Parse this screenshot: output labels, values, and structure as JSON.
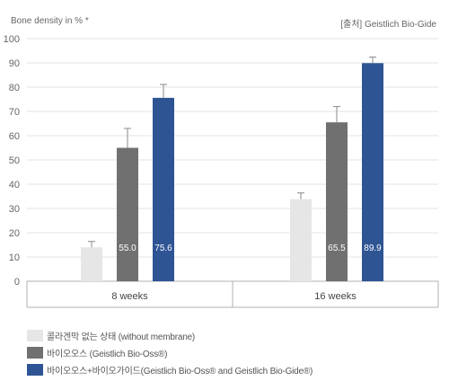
{
  "chart_data": {
    "type": "bar",
    "ylabel": "Bone density in % *",
    "source": "[출처] Geistlich Bio-Gide",
    "ylim": [
      0,
      100
    ],
    "yticks": [
      "0",
      "10",
      "20",
      "30",
      "40",
      "50",
      "60",
      "70",
      "80",
      "90",
      "100"
    ],
    "categories": [
      "8 weeks",
      "16 weeks"
    ],
    "grid": true,
    "series": [
      {
        "name": "콜라겐막 없는 상태 (without membrane)",
        "color": "#e6e6e6",
        "values": [
          14,
          33.8
        ],
        "labels": [
          "",
          ""
        ],
        "error": [
          2.4,
          2.6
        ]
      },
      {
        "name": "바이오오스 (Geistlich Bio-Oss®)",
        "color": "#707070",
        "values": [
          55.0,
          65.5
        ],
        "labels": [
          "55.0",
          "65.5"
        ],
        "error": [
          8.0,
          6.5
        ]
      },
      {
        "name": "바이오오스+바이오가이드(Geistlich Bio-Oss® and Geistlich Bio-Gide®)",
        "color": "#2e5494",
        "values": [
          75.6,
          89.9
        ],
        "labels": [
          "75.6",
          "89.9"
        ],
        "error": [
          5.5,
          2.5
        ]
      }
    ]
  }
}
